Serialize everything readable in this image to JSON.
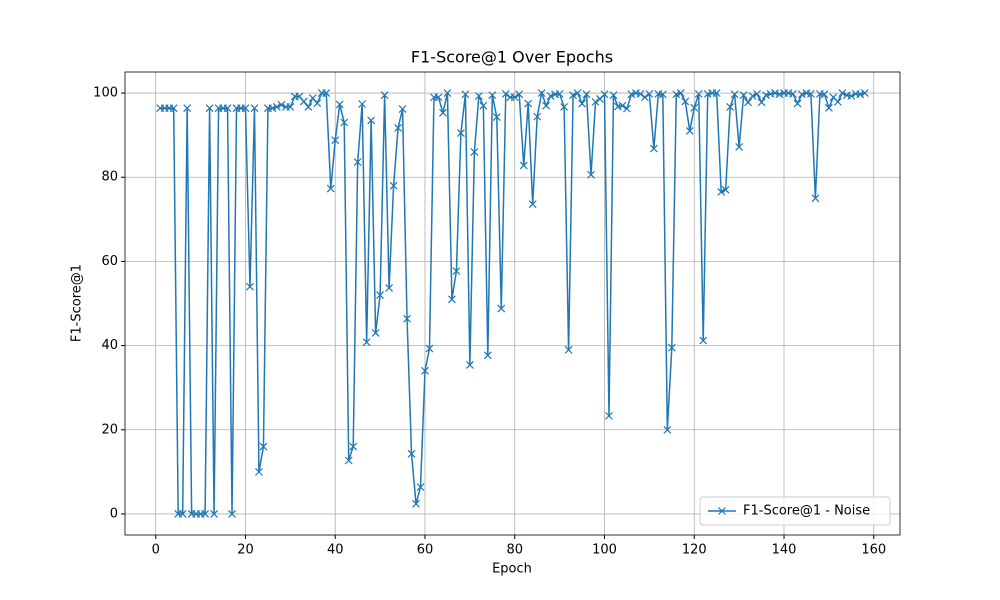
{
  "chart_data": {
    "type": "line",
    "title": "F1-Score@1 Over Epochs",
    "x_label": "Epoch",
    "y_label": "F1-Score@1",
    "x": [
      1,
      2,
      3,
      4,
      5,
      6,
      7,
      8,
      9,
      10,
      11,
      12,
      13,
      14,
      15,
      16,
      17,
      18,
      19,
      20,
      21,
      22,
      23,
      24,
      25,
      26,
      27,
      28,
      29,
      30,
      31,
      32,
      33,
      34,
      35,
      36,
      37,
      38,
      39,
      40,
      41,
      42,
      43,
      44,
      45,
      46,
      47,
      48,
      49,
      50,
      51,
      52,
      53,
      54,
      55,
      56,
      57,
      58,
      59,
      60,
      61,
      62,
      63,
      64,
      65,
      66,
      67,
      68,
      69,
      70,
      71,
      72,
      73,
      74,
      75,
      76,
      77,
      78,
      79,
      80,
      81,
      82,
      83,
      84,
      85,
      86,
      87,
      88,
      89,
      90,
      91,
      92,
      93,
      94,
      95,
      96,
      97,
      98,
      99,
      100,
      101,
      102,
      103,
      104,
      105,
      106,
      107,
      108,
      109,
      110,
      111,
      112,
      113,
      114,
      115,
      116,
      117,
      118,
      119,
      120,
      121,
      122,
      123,
      124,
      125,
      126,
      127,
      128,
      129,
      130,
      131,
      132,
      133,
      134,
      135,
      136,
      137,
      138,
      139,
      140,
      141,
      142,
      143,
      144,
      145,
      146,
      147,
      148,
      149,
      150,
      151,
      152,
      153,
      154,
      155,
      156,
      157,
      158
    ],
    "series": [
      {
        "name": "F1-Score@1 - Noise",
        "color": "#1f77b4",
        "values": [
          96.4,
          96.4,
          96.4,
          96.4,
          0,
          0,
          96.4,
          0,
          0,
          0,
          0,
          96.4,
          0,
          96.4,
          96.4,
          96.4,
          0,
          96.4,
          96.4,
          96.4,
          54,
          96.4,
          10,
          16,
          96.4,
          96.4,
          96.7,
          97.2,
          96.7,
          96.7,
          99.2,
          99.2,
          98,
          96.7,
          98.8,
          97.6,
          100,
          100,
          77.3,
          88.8,
          97.3,
          93,
          12.7,
          16,
          83.6,
          97.4,
          40.8,
          93.5,
          43,
          52,
          99.5,
          53.7,
          78,
          91.7,
          96.2,
          46.4,
          14.3,
          2.4,
          6.4,
          34,
          39.3,
          99,
          99,
          95.3,
          100,
          51,
          57.7,
          90.5,
          99.7,
          35.4,
          86,
          99.3,
          97,
          37.7,
          99.5,
          94.3,
          48.8,
          99.8,
          99,
          99,
          99.7,
          82.8,
          97.5,
          73.6,
          94.4,
          100,
          97,
          99.3,
          99.7,
          99.8,
          96.7,
          39,
          99.5,
          100,
          97.5,
          99.7,
          80.6,
          97.9,
          98.6,
          99.7,
          23.3,
          99.5,
          96.8,
          97,
          96.3,
          99.7,
          100,
          99.8,
          99,
          99.8,
          86.8,
          99.8,
          99.7,
          20,
          39.5,
          99.7,
          100,
          98,
          91,
          96.5,
          99.8,
          41.2,
          99.8,
          100,
          100,
          76.5,
          77,
          96.7,
          99.7,
          87.2,
          99.5,
          97.8,
          99.3,
          99.8,
          97.8,
          99.5,
          99.8,
          100,
          99.7,
          100,
          100,
          99.8,
          97.5,
          99.7,
          100,
          99.8,
          75,
          99.8,
          99.7,
          96.5,
          99,
          97.9,
          100,
          99.5,
          99.3,
          99.8,
          99.7,
          100
        ]
      }
    ],
    "xlim": [
      -6.85,
      165.85
    ],
    "ylim": [
      -5,
      105
    ],
    "xticks": [
      0,
      20,
      40,
      60,
      80,
      100,
      120,
      140,
      160
    ],
    "yticks": [
      0,
      20,
      40,
      60,
      80,
      100
    ],
    "grid": true,
    "legend": "lower right",
    "marker": "x"
  }
}
